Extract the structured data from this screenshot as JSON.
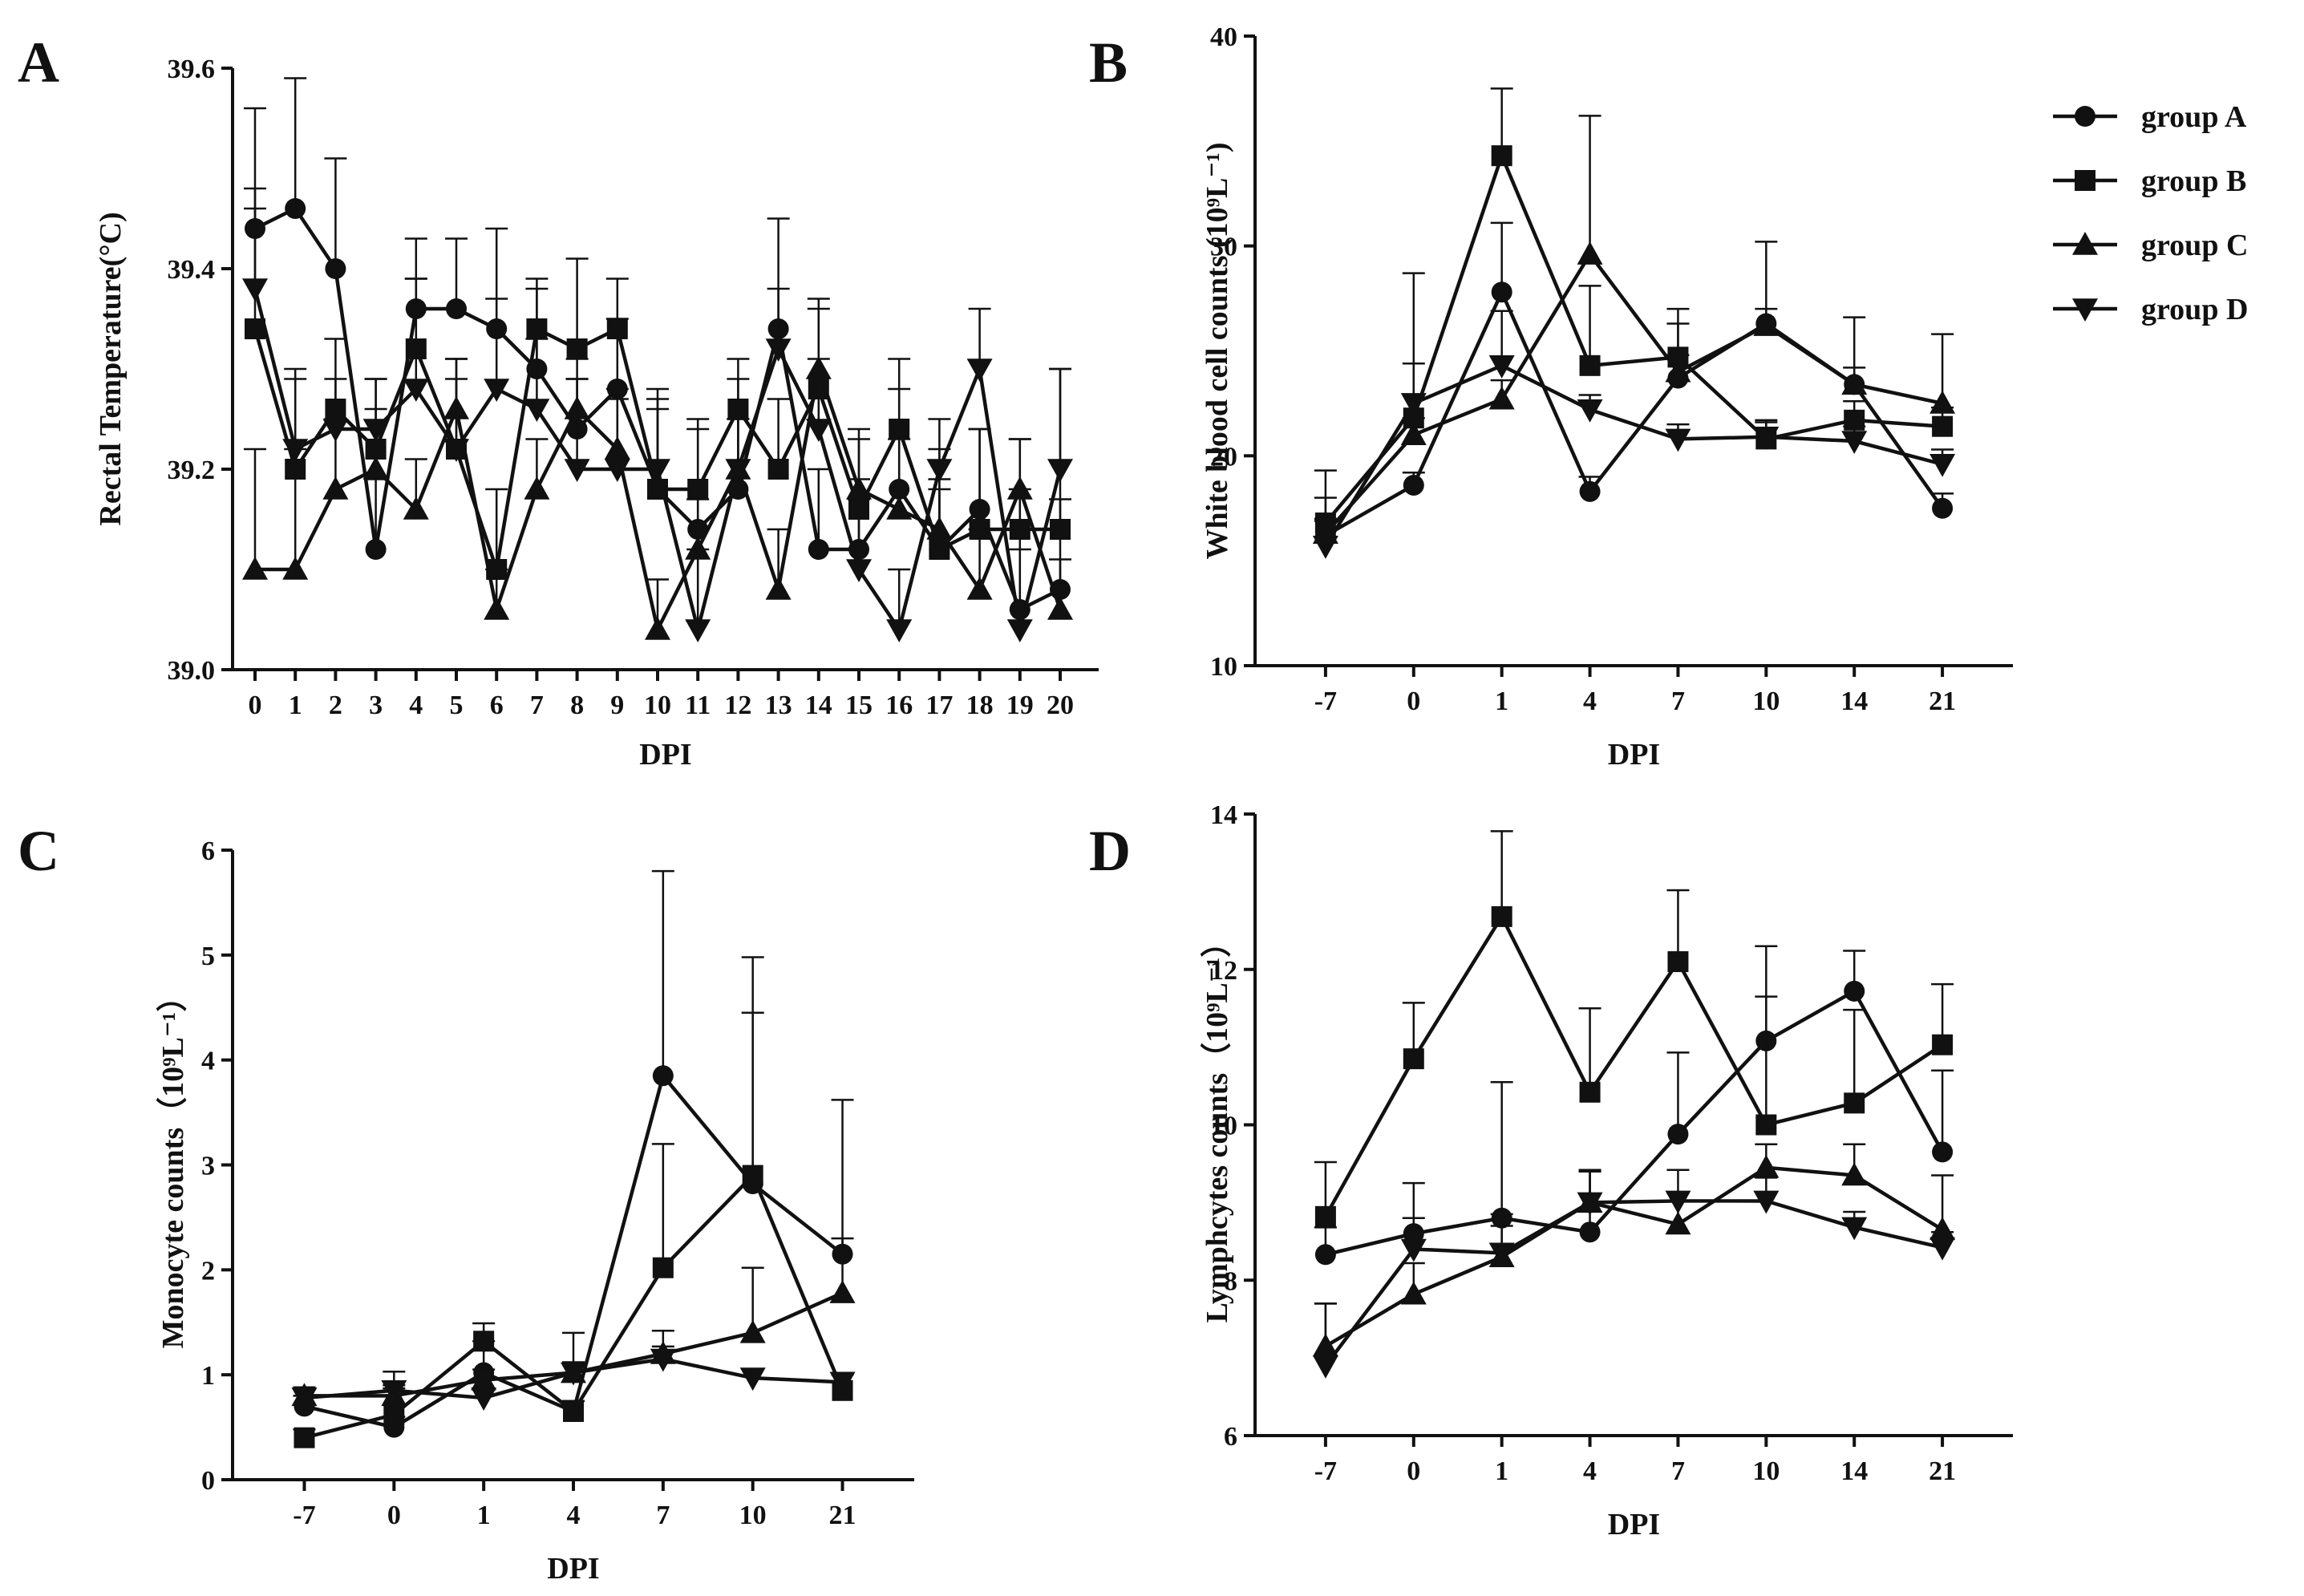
{
  "figure_panels": [
    "A",
    "B",
    "C",
    "D"
  ],
  "legend": {
    "entries": [
      {
        "label": "group A",
        "marker": "circle"
      },
      {
        "label": "group B",
        "marker": "square"
      },
      {
        "label": "group C",
        "marker": "triangle-up"
      },
      {
        "label": "group D",
        "marker": "triangle-down"
      }
    ],
    "placement": "top-right"
  },
  "chart_data": [
    {
      "panel": "A",
      "type": "line",
      "ylabel": "Rectal Temperature(°C)",
      "xlabel": "DPI",
      "ylim": [
        39.0,
        39.6
      ],
      "yticks": [
        39.0,
        39.2,
        39.4,
        39.6
      ],
      "ytick_labels": [
        "39.0",
        "39.2",
        "39.4",
        "39.6"
      ],
      "categories": [
        "0",
        "1",
        "2",
        "3",
        "4",
        "5",
        "6",
        "7",
        "8",
        "9",
        "10",
        "11",
        "12",
        "13",
        "14",
        "15",
        "16",
        "17",
        "18",
        "19",
        "20"
      ],
      "grid": false,
      "series": [
        {
          "name": "group A",
          "marker": "circle",
          "values": [
            39.44,
            39.46,
            39.4,
            39.12,
            39.36,
            39.36,
            39.34,
            39.3,
            39.24,
            39.28,
            39.18,
            39.14,
            39.18,
            39.34,
            39.12,
            39.12,
            39.18,
            39.12,
            39.16,
            39.06,
            39.08
          ],
          "errors": [
            0.12,
            0.13,
            0.11,
            0.07,
            0.07,
            0.07,
            0.1,
            0.08,
            0.05,
            0.07,
            0.1,
            0.1,
            0.11,
            0.11,
            0.08,
            0.07,
            0.1,
            0.1,
            0.08,
            0.12,
            0.09
          ]
        },
        {
          "name": "group B",
          "marker": "square",
          "values": [
            39.34,
            39.2,
            39.26,
            39.22,
            39.32,
            39.22,
            39.1,
            39.34,
            39.32,
            39.34,
            39.18,
            39.18,
            39.26,
            39.2,
            39.28,
            39.16,
            39.24,
            39.12,
            39.14,
            39.14,
            39.14
          ],
          "errors": [
            0.12,
            0.09,
            0.07,
            0.07,
            0.07,
            0.09,
            0.08,
            0.05,
            0.09,
            0.05,
            0.08,
            0.07,
            0.05,
            0.07,
            0.08,
            0.07,
            0.07,
            0.06,
            0.1,
            0.09,
            0.16
          ]
        },
        {
          "name": "group C",
          "marker": "triangle-up",
          "values": [
            39.1,
            39.1,
            39.18,
            39.2,
            39.16,
            39.26,
            39.06,
            39.18,
            39.26,
            39.22,
            39.04,
            39.12,
            39.2,
            39.08,
            39.3,
            39.18,
            39.16,
            39.14,
            39.08,
            39.18,
            39.06
          ],
          "errors": [
            0.12,
            0.12,
            0.07,
            0.06,
            0.05,
            0.05,
            0.04,
            0.05,
            0.05,
            0.05,
            0.05,
            0.05,
            0.05,
            0.06,
            0.07,
            0.06,
            0.07,
            0.05,
            0.06,
            0.05,
            0.05
          ]
        },
        {
          "name": "group D",
          "marker": "triangle-down",
          "values": [
            39.38,
            39.22,
            39.24,
            39.24,
            39.28,
            39.22,
            39.28,
            39.26,
            39.2,
            39.2,
            39.2,
            39.04,
            39.2,
            39.32,
            39.24,
            39.1,
            39.04,
            39.2,
            39.3,
            39.04,
            39.2
          ],
          "errors": [
            0.1,
            0.08,
            0.05,
            0.05,
            0.11,
            0.07,
            0.09,
            0.07,
            0.09,
            0.08,
            0.07,
            0.08,
            0.05,
            0.06,
            0.07,
            0.07,
            0.06,
            0.05,
            0.06,
            0.08,
            0.1
          ]
        }
      ]
    },
    {
      "panel": "B",
      "type": "line",
      "ylabel": "White blood cell counts (10⁹L⁻¹)",
      "xlabel": "DPI",
      "ylim": [
        10,
        40
      ],
      "yticks": [
        10,
        20,
        30,
        40
      ],
      "ytick_labels": [
        "10",
        "20",
        "30",
        "40"
      ],
      "categories": [
        "-7",
        "0",
        "1",
        "4",
        "7",
        "10",
        "14",
        "21"
      ],
      "grid": false,
      "series": [
        {
          "name": "group A",
          "marker": "circle",
          "values": [
            16.2,
            18.6,
            27.8,
            18.3,
            23.7,
            26.3,
            23.4,
            17.5
          ],
          "errors": [
            0.7,
            0.6,
            3.3,
            0.7,
            2.6,
            3.9,
            0.8,
            0.7
          ]
        },
        {
          "name": "group B",
          "marker": "square",
          "values": [
            16.8,
            21.8,
            34.3,
            24.3,
            24.7,
            20.8,
            21.7,
            21.4
          ],
          "errors": [
            1.2,
            6.9,
            3.2,
            3.8,
            2.3,
            0.9,
            0.9,
            0.9
          ]
        },
        {
          "name": "group C",
          "marker": "triangle-up",
          "values": [
            16.3,
            21.0,
            22.7,
            29.6,
            24.0,
            26.2,
            23.4,
            22.5
          ],
          "errors": [
            0.7,
            0.8,
            0.9,
            6.6,
            0.8,
            0.8,
            3.2,
            3.3
          ]
        },
        {
          "name": "group D",
          "marker": "triangle-down",
          "values": [
            15.7,
            22.5,
            24.3,
            22.2,
            20.8,
            20.9,
            20.7,
            19.6
          ],
          "errors": [
            3.6,
            1.9,
            2.6,
            0.7,
            0.7,
            0.7,
            0.7,
            0.7
          ]
        }
      ]
    },
    {
      "panel": "C",
      "type": "line",
      "ylabel": "Monocyte counts（10⁹L⁻¹）",
      "xlabel": "DPI",
      "ylim": [
        0,
        6
      ],
      "yticks": [
        0,
        1,
        2,
        3,
        4,
        5,
        6
      ],
      "ytick_labels": [
        "0",
        "1",
        "2",
        "3",
        "4",
        "5",
        "6"
      ],
      "categories": [
        "-7",
        "0",
        "1",
        "4",
        "7",
        "10",
        "21"
      ],
      "grid": false,
      "series": [
        {
          "name": "group A",
          "marker": "circle",
          "values": [
            0.7,
            0.5,
            1.02,
            0.65,
            3.85,
            2.82,
            2.15
          ],
          "errors": [
            0.1,
            0.1,
            0.3,
            0.1,
            1.95,
            1.63,
            1.47
          ]
        },
        {
          "name": "group B",
          "marker": "square",
          "values": [
            0.4,
            0.62,
            1.32,
            0.65,
            2.02,
            2.9,
            0.85
          ],
          "errors": [
            0.08,
            0.25,
            0.17,
            0.1,
            1.18,
            2.08,
            0.15
          ]
        },
        {
          "name": "group C",
          "marker": "triangle-up",
          "values": [
            0.8,
            0.8,
            0.95,
            1.02,
            1.2,
            1.4,
            1.78
          ],
          "errors": [
            0.08,
            0.1,
            0.1,
            0.38,
            0.22,
            0.62,
            0.52
          ]
        },
        {
          "name": "group D",
          "marker": "triangle-down",
          "values": [
            0.78,
            0.85,
            0.78,
            1.02,
            1.15,
            0.97,
            0.93
          ],
          "errors": [
            0.1,
            0.18,
            0.08,
            0.1,
            0.12,
            0.08,
            0.08
          ]
        }
      ]
    },
    {
      "panel": "D",
      "type": "line",
      "ylabel": "Lymphcytes counts（10⁹L⁻¹）",
      "xlabel": "DPI",
      "ylim": [
        6,
        14
      ],
      "yticks": [
        6,
        8,
        10,
        12,
        14
      ],
      "ytick_labels": [
        "6",
        "8",
        "10",
        "12",
        "14"
      ],
      "categories": [
        "-7",
        "0",
        "1",
        "4",
        "7",
        "10",
        "14",
        "21"
      ],
      "grid": false,
      "series": [
        {
          "name": "group A",
          "marker": "circle",
          "values": [
            8.33,
            8.6,
            8.8,
            8.62,
            9.88,
            11.08,
            11.72,
            9.65
          ],
          "errors": [
            0.35,
            0.65,
            1.75,
            0.8,
            1.05,
            1.22,
            0.52,
            1.05
          ]
        },
        {
          "name": "group B",
          "marker": "square",
          "values": [
            8.82,
            10.85,
            12.68,
            10.42,
            12.1,
            10.0,
            10.28,
            11.03
          ],
          "errors": [
            0.7,
            0.72,
            1.1,
            1.08,
            0.92,
            1.65,
            1.2,
            0.78
          ]
        },
        {
          "name": "group C",
          "marker": "triangle-up",
          "values": [
            7.15,
            7.82,
            8.3,
            9.0,
            8.72,
            9.45,
            9.35,
            8.65
          ],
          "errors": [
            0.55,
            0.4,
            0.4,
            0.4,
            0.4,
            0.3,
            0.4,
            0.7
          ]
        },
        {
          "name": "group D",
          "marker": "triangle-down",
          "values": [
            6.9,
            8.4,
            8.35,
            9.0,
            9.02,
            9.02,
            8.68,
            8.42
          ],
          "errors": [
            0.8,
            0.4,
            0.5,
            0.4,
            0.4,
            0.3,
            0.2,
            0.2
          ]
        }
      ]
    }
  ]
}
